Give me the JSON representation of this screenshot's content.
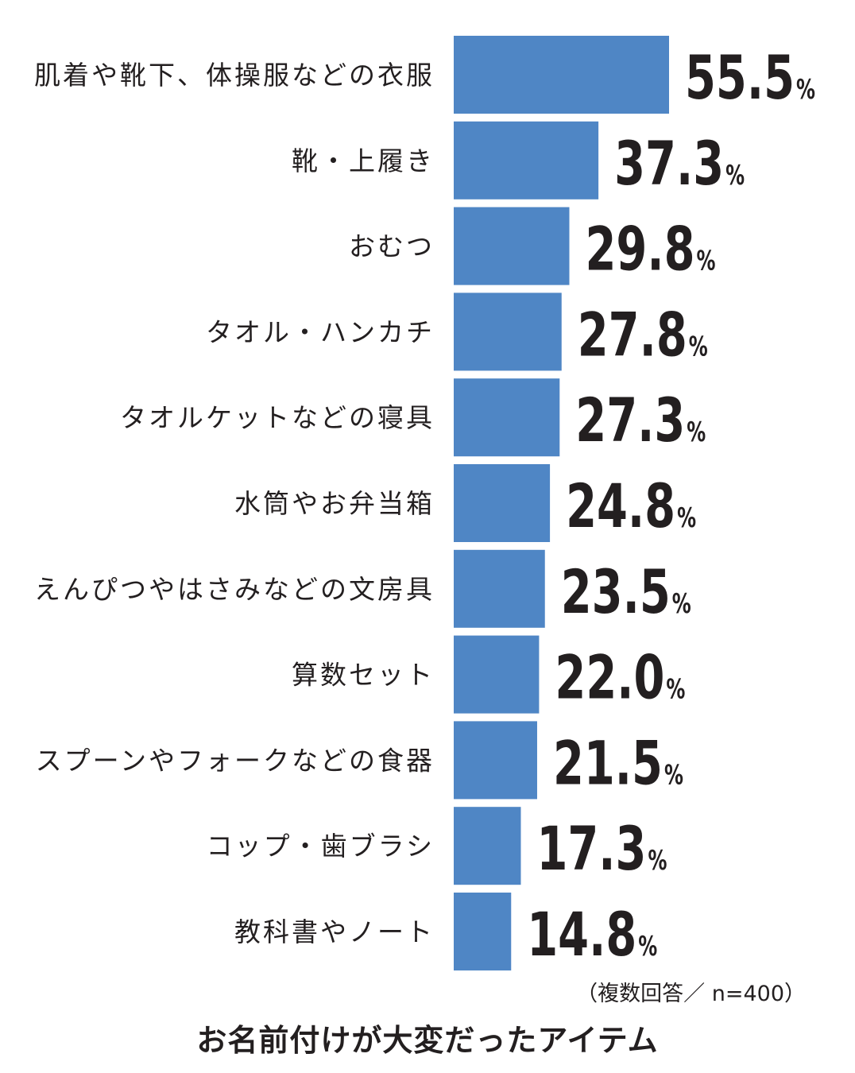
{
  "colors": {
    "bar": "#4f86c5",
    "text": "#231f20"
  },
  "chart_data": {
    "type": "bar",
    "orientation": "horizontal",
    "categories": [
      "肌着や靴下、体操服などの衣服",
      "靴・上履き",
      "おむつ",
      "タオル・ハンカチ",
      "タオルケットなどの寝具",
      "水筒やお弁当箱",
      "えんぴつやはさみなどの文房具",
      "算数セット",
      "スプーンやフォークなどの食器",
      "コップ・歯ブラシ",
      "教科書やノート"
    ],
    "values": [
      55.5,
      37.3,
      29.8,
      27.8,
      27.3,
      24.8,
      23.5,
      22.0,
      21.5,
      17.3,
      14.8
    ],
    "data_labels": [
      "55.5",
      "37.3",
      "29.8",
      "27.8",
      "27.3",
      "24.8",
      "23.5",
      "22.0",
      "21.5",
      "17.3",
      "14.8"
    ],
    "unit": "%",
    "note": "（複数回答／ n=400）",
    "title": "お名前付けが大変だったアイテム",
    "grid": false,
    "legend": "none"
  }
}
